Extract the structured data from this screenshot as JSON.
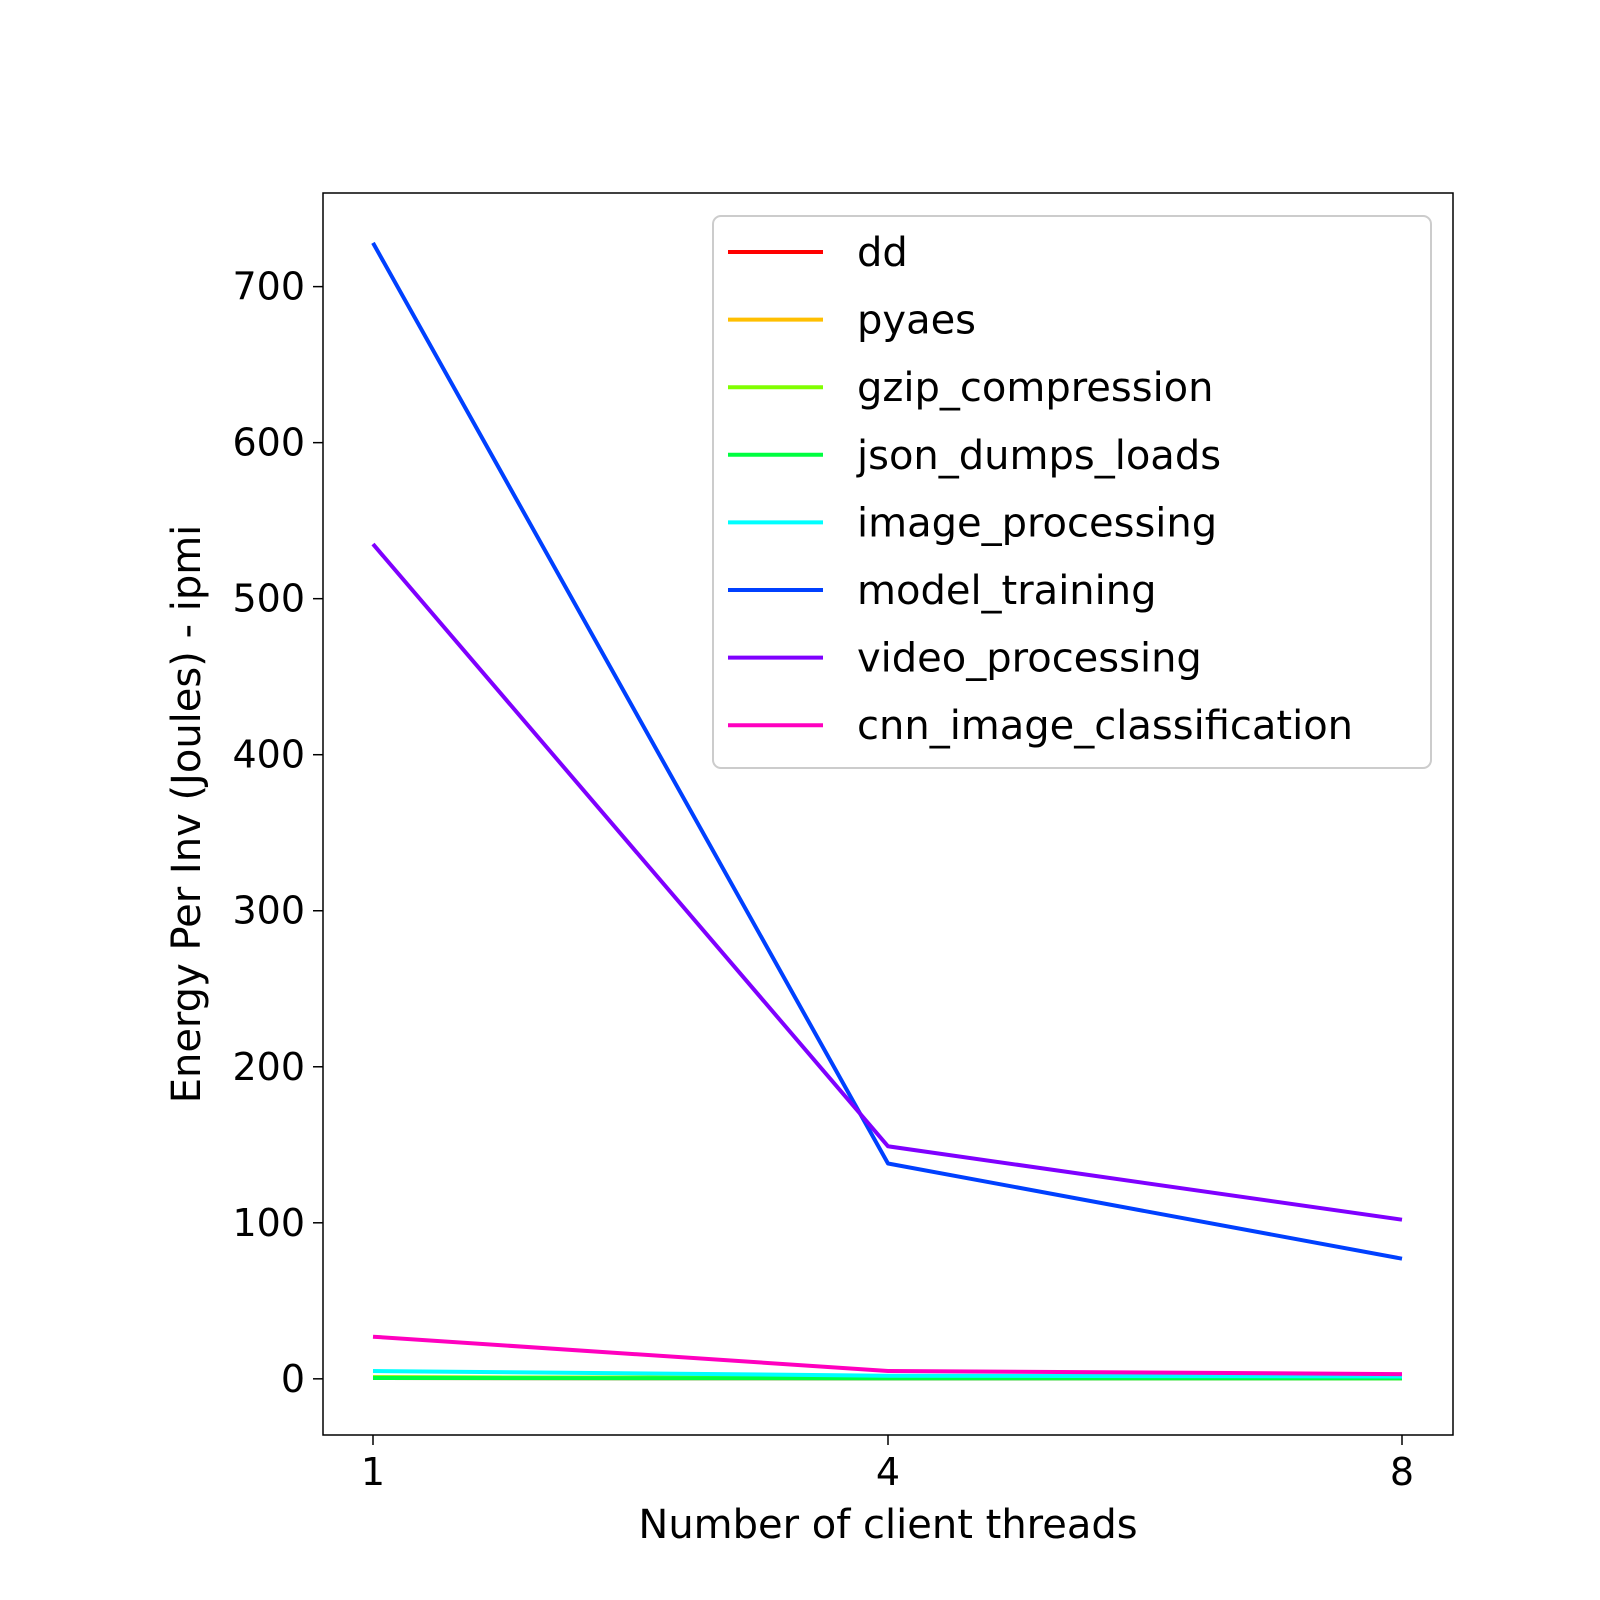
{
  "chart_data": {
    "type": "line",
    "title": "",
    "xlabel": "Number of client threads",
    "ylabel": "Energy Per Inv (Joules) - ipmi",
    "x": [
      "1",
      "4",
      "8"
    ],
    "ylim": [
      -36,
      760
    ],
    "yticks": [
      0,
      100,
      200,
      300,
      400,
      500,
      600,
      700
    ],
    "grid": false,
    "legend_position": "top-right",
    "series": [
      {
        "name": "dd",
        "color": "#ff0000",
        "values": [
          0.5,
          0.3,
          0.3
        ]
      },
      {
        "name": "pyaes",
        "color": "#ffbf00",
        "values": [
          1.0,
          0.5,
          0.4
        ]
      },
      {
        "name": "gzip_compression",
        "color": "#80ff00",
        "values": [
          1.0,
          0.5,
          0.4
        ]
      },
      {
        "name": "json_dumps_loads",
        "color": "#00ff40",
        "values": [
          0.5,
          0.3,
          0.3
        ]
      },
      {
        "name": "image_processing",
        "color": "#00ffff",
        "values": [
          5,
          2,
          1.5
        ]
      },
      {
        "name": "model_training",
        "color": "#0040ff",
        "values": [
          728,
          138,
          77
        ]
      },
      {
        "name": "video_processing",
        "color": "#7f00ff",
        "values": [
          535,
          149,
          102
        ]
      },
      {
        "name": "cnn_image_classification",
        "color": "#ff00bf",
        "values": [
          27,
          5,
          3
        ]
      }
    ]
  }
}
